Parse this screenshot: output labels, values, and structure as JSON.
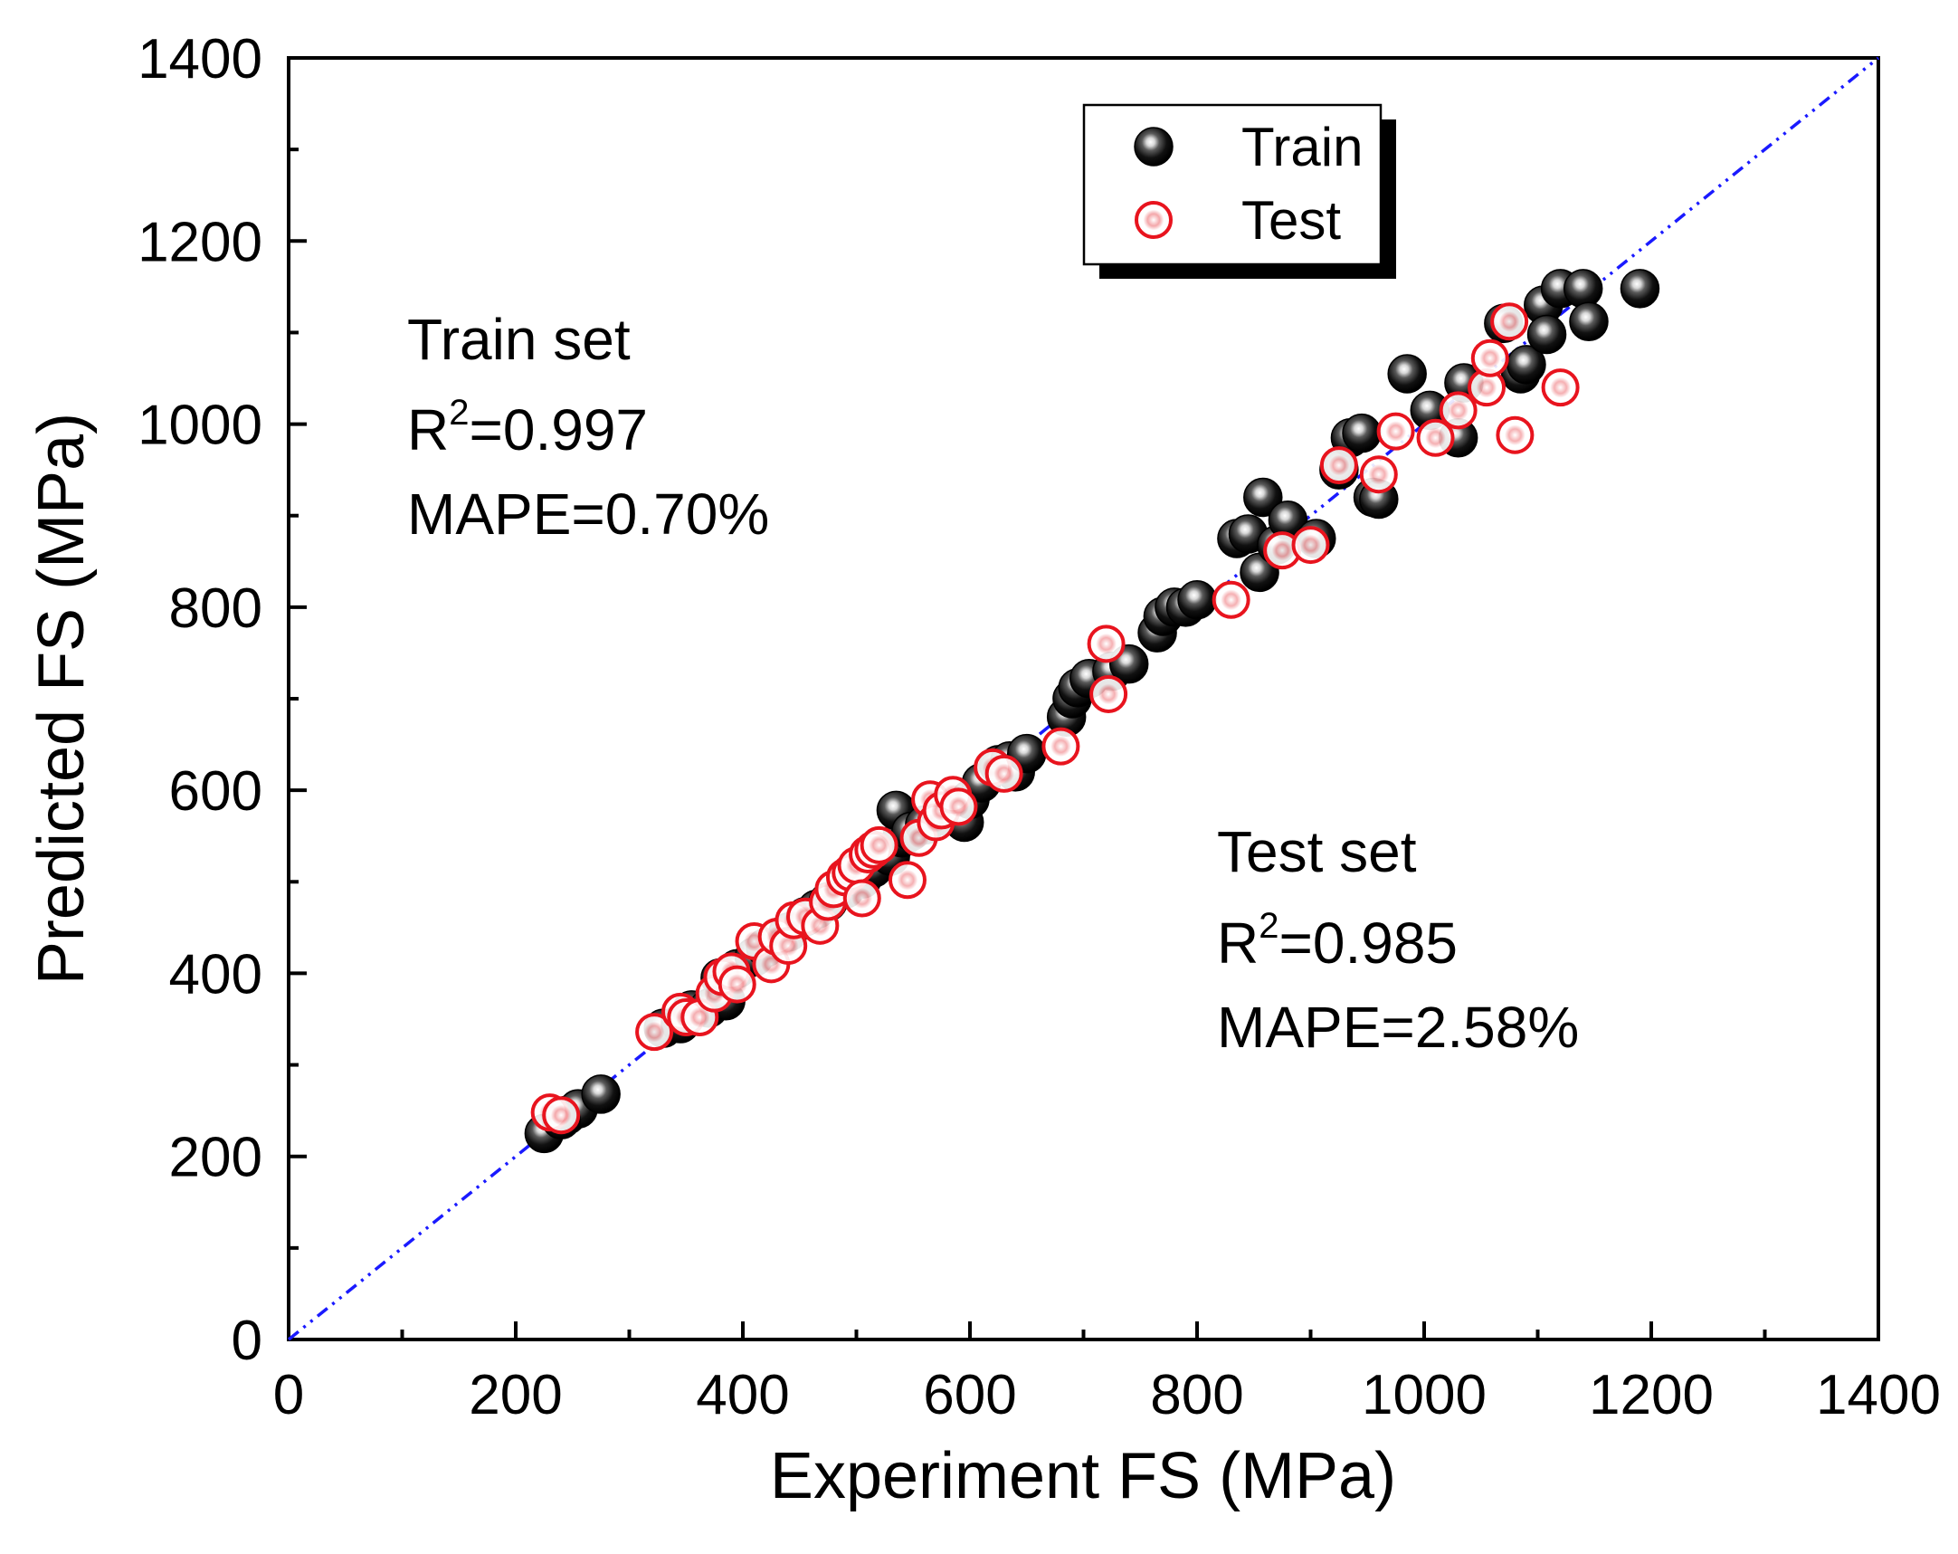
{
  "chart_data": {
    "type": "scatter",
    "xlabel": "Experiment FS (MPa)",
    "ylabel": "Predicted FS (MPa)",
    "xlim": [
      0,
      1400
    ],
    "ylim": [
      0,
      1400
    ],
    "xticks": [
      "0",
      "200",
      "400",
      "600",
      "800",
      "1000",
      "1200",
      "1400"
    ],
    "yticks": [
      "0",
      "200",
      "400",
      "600",
      "800",
      "1000",
      "1200",
      "1400"
    ],
    "reference_line": {
      "from": [
        0,
        0
      ],
      "to": [
        1400,
        1400
      ],
      "color": "#1a1aff",
      "style": "dash-dot"
    },
    "legend": {
      "position": "top-center",
      "entries": [
        "Train",
        "Test"
      ]
    },
    "series": [
      {
        "name": "Train",
        "color": "#000000",
        "points": [
          [
            225,
            225
          ],
          [
            245,
            245
          ],
          [
            255,
            252
          ],
          [
            275,
            268
          ],
          [
            240,
            240
          ],
          [
            330,
            340
          ],
          [
            345,
            345
          ],
          [
            355,
            360
          ],
          [
            370,
            362
          ],
          [
            385,
            370
          ],
          [
            395,
            405
          ],
          [
            380,
            395
          ],
          [
            410,
            418
          ],
          [
            420,
            428
          ],
          [
            440,
            445
          ],
          [
            455,
            462
          ],
          [
            465,
            470
          ],
          [
            475,
            478
          ],
          [
            490,
            492
          ],
          [
            505,
            503
          ],
          [
            515,
            515
          ],
          [
            530,
            528
          ],
          [
            540,
            548
          ],
          [
            535,
            578
          ],
          [
            548,
            555
          ],
          [
            560,
            562
          ],
          [
            575,
            572
          ],
          [
            595,
            565
          ],
          [
            600,
            590
          ],
          [
            610,
            608
          ],
          [
            625,
            628
          ],
          [
            635,
            632
          ],
          [
            640,
            620
          ],
          [
            650,
            640
          ],
          [
            685,
            680
          ],
          [
            690,
            700
          ],
          [
            695,
            712
          ],
          [
            705,
            722
          ],
          [
            725,
            730
          ],
          [
            740,
            738
          ],
          [
            765,
            772
          ],
          [
            770,
            790
          ],
          [
            780,
            800
          ],
          [
            790,
            800
          ],
          [
            800,
            808
          ],
          [
            835,
            875
          ],
          [
            845,
            880
          ],
          [
            855,
            838
          ],
          [
            858,
            920
          ],
          [
            870,
            868
          ],
          [
            880,
            895
          ],
          [
            905,
            875
          ],
          [
            925,
            950
          ],
          [
            935,
            985
          ],
          [
            945,
            990
          ],
          [
            955,
            920
          ],
          [
            960,
            918
          ],
          [
            985,
            1055
          ],
          [
            1005,
            1015
          ],
          [
            1030,
            985
          ],
          [
            1035,
            1045
          ],
          [
            1070,
            1110
          ],
          [
            1085,
            1055
          ],
          [
            1090,
            1065
          ],
          [
            1105,
            1130
          ],
          [
            1108,
            1098
          ],
          [
            1120,
            1148
          ],
          [
            1140,
            1148
          ],
          [
            1145,
            1112
          ],
          [
            1190,
            1148
          ]
        ]
      },
      {
        "name": "Test",
        "color": "#e8141e",
        "points": [
          [
            230,
            248
          ],
          [
            240,
            245
          ],
          [
            322,
            336
          ],
          [
            345,
            358
          ],
          [
            350,
            352
          ],
          [
            362,
            352
          ],
          [
            375,
            378
          ],
          [
            382,
            396
          ],
          [
            390,
            402
          ],
          [
            395,
            388
          ],
          [
            410,
            435
          ],
          [
            425,
            410
          ],
          [
            430,
            440
          ],
          [
            440,
            430
          ],
          [
            445,
            458
          ],
          [
            455,
            462
          ],
          [
            468,
            452
          ],
          [
            475,
            478
          ],
          [
            480,
            492
          ],
          [
            490,
            505
          ],
          [
            495,
            510
          ],
          [
            500,
            518
          ],
          [
            505,
            482
          ],
          [
            510,
            530
          ],
          [
            515,
            535
          ],
          [
            520,
            540
          ],
          [
            545,
            502
          ],
          [
            555,
            548
          ],
          [
            565,
            590
          ],
          [
            570,
            565
          ],
          [
            575,
            578
          ],
          [
            585,
            595
          ],
          [
            590,
            582
          ],
          [
            620,
            625
          ],
          [
            630,
            618
          ],
          [
            680,
            648
          ],
          [
            720,
            760
          ],
          [
            722,
            705
          ],
          [
            830,
            808
          ],
          [
            875,
            862
          ],
          [
            900,
            868
          ],
          [
            925,
            955
          ],
          [
            960,
            945
          ],
          [
            975,
            992
          ],
          [
            1010,
            985
          ],
          [
            1030,
            1015
          ],
          [
            1055,
            1040
          ],
          [
            1058,
            1072
          ],
          [
            1075,
            1112
          ],
          [
            1080,
            988
          ],
          [
            1120,
            1040
          ]
        ]
      }
    ],
    "annotations": [
      {
        "name": "train",
        "title": "Train set",
        "r2_prefix": "R",
        "r2_exp": "2",
        "r2_value": "=0.997",
        "mape": "MAPE=0.70%"
      },
      {
        "name": "test",
        "title": "Test set",
        "r2_prefix": "R",
        "r2_exp": "2",
        "r2_value": "=0.985",
        "mape": "MAPE=2.58%"
      }
    ]
  }
}
